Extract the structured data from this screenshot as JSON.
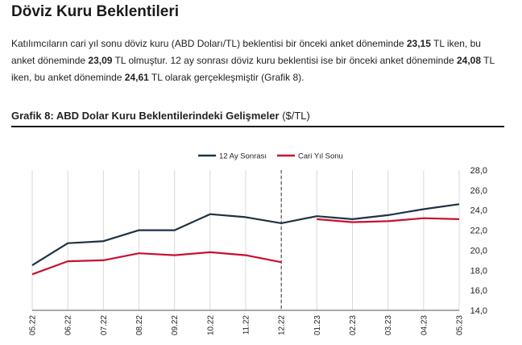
{
  "heading": "Döviz Kuru Beklentileri",
  "paragraph": {
    "p1": "Katılımcıların cari yıl sonu döviz kuru (ABD Doları/TL) beklentisi bir önceki anket döneminde ",
    "v1": "23,15",
    "p2": " TL iken, bu anket döneminde ",
    "v2": "23,09",
    "p3": " TL olmuştur. 12 ay sonrası döviz kuru beklentisi ise bir önceki anket döneminde ",
    "v3": "24,08",
    "p4": " TL iken, bu anket döneminde ",
    "v4": "24,61",
    "p5": " TL olarak gerçekleşmiştir (Grafik 8)."
  },
  "chart_heading": {
    "bold": "Grafik 8: ABD Dolar Kuru Beklentilerindeki Gelişmeler",
    "unit": " ($/TL)"
  },
  "chart_data": {
    "type": "line",
    "categories": [
      "05.22",
      "06.22",
      "07.22",
      "08.22",
      "09.22",
      "10.22",
      "11.22",
      "12.22",
      "01.23",
      "02.23",
      "03.23",
      "04.23",
      "05.23"
    ],
    "series": [
      {
        "name": "12 Ay Sonrası",
        "color": "#1f3244",
        "values": [
          18.5,
          20.7,
          20.9,
          22.0,
          22.0,
          23.6,
          23.3,
          22.7,
          23.4,
          23.1,
          23.5,
          24.1,
          24.6
        ]
      },
      {
        "name": "Cari Yıl Sonu",
        "color": "#c8102e",
        "values": [
          17.6,
          18.9,
          19.0,
          19.7,
          19.5,
          19.8,
          19.5,
          18.8,
          null,
          null,
          null,
          null,
          null
        ],
        "values_after_break": [
          null,
          null,
          null,
          null,
          null,
          null,
          null,
          null,
          23.1,
          22.8,
          22.9,
          23.2,
          23.1
        ]
      }
    ],
    "y_ticks": [
      "28,0",
      "26,0",
      "24,0",
      "22,0",
      "20,0",
      "18,0",
      "16,0",
      "14,0"
    ],
    "ylim": [
      14,
      28
    ],
    "y_axis_side": "right",
    "grid": "vertical",
    "legend": "top-center",
    "break_after_category": "12.22"
  }
}
